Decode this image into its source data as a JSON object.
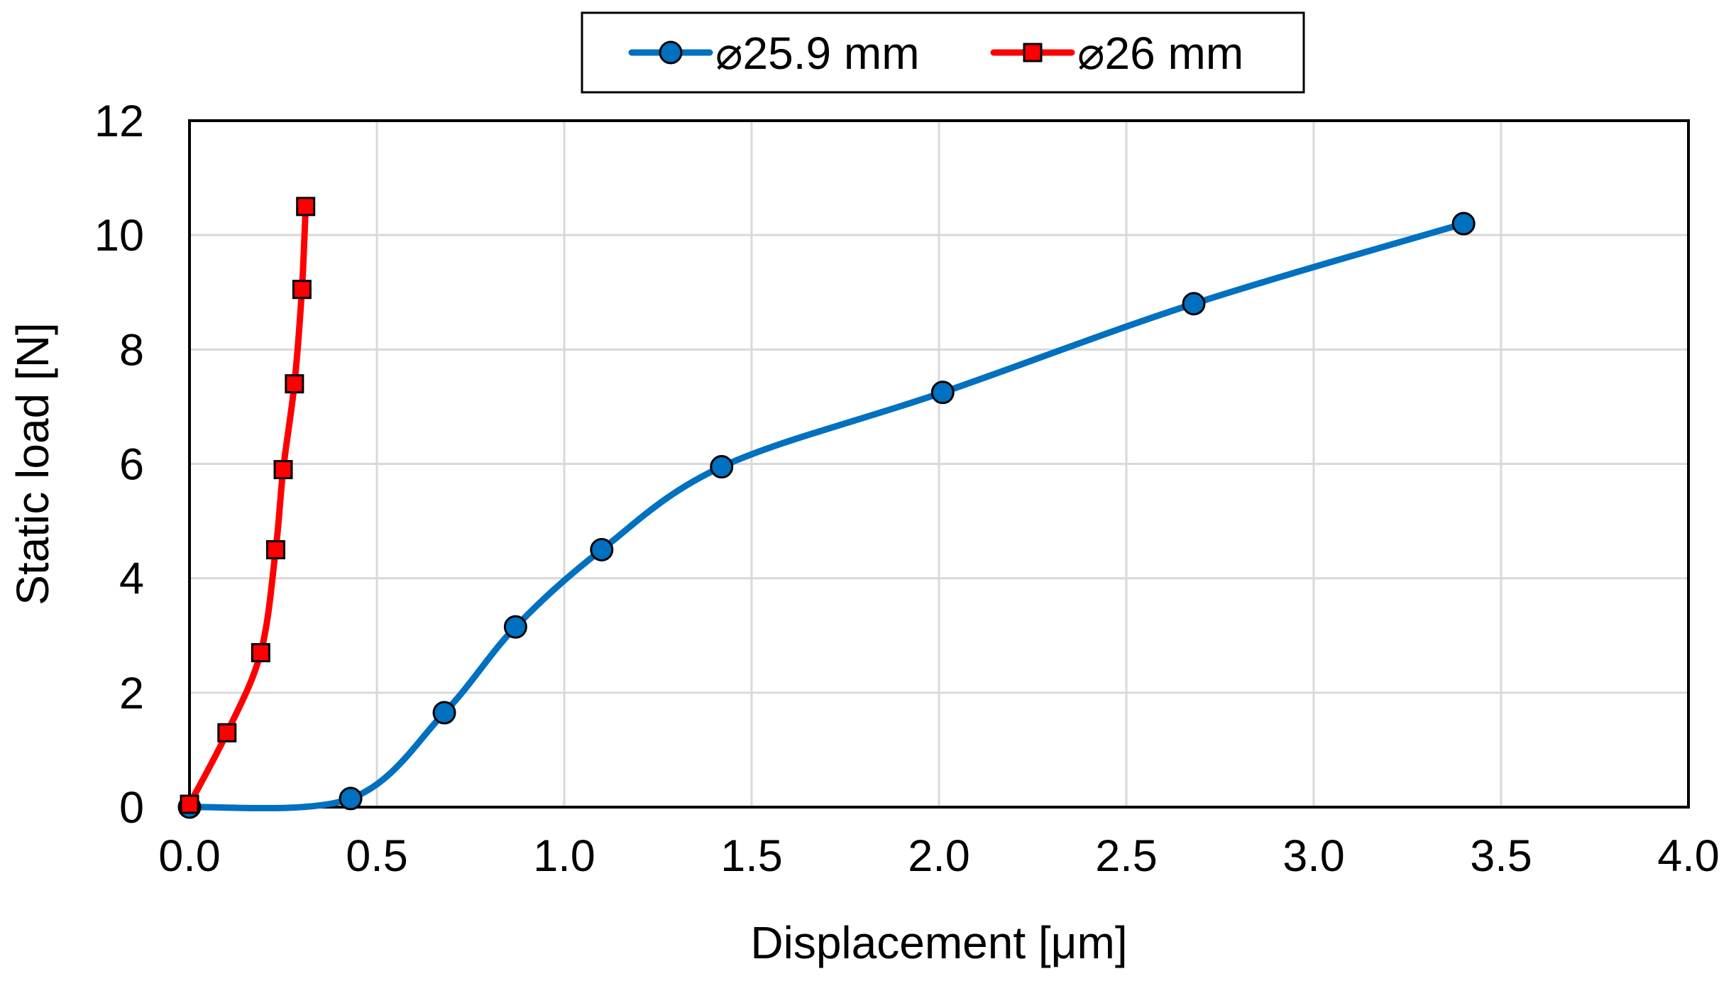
{
  "chart_data": {
    "type": "line",
    "xlabel": "Displacement [μm]",
    "ylabel": "Static load [N]",
    "xlim": [
      0.0,
      4.0
    ],
    "ylim": [
      0,
      12
    ],
    "xticks": [
      "0.0",
      "0.5",
      "1.0",
      "1.5",
      "2.0",
      "2.5",
      "3.0",
      "3.5",
      "4.0"
    ],
    "yticks": [
      "0",
      "2",
      "4",
      "6",
      "8",
      "10",
      "12"
    ],
    "grid": true,
    "legend_position": "top-center",
    "series": [
      {
        "name": "⌀25.9 mm",
        "color": "#0070C0",
        "marker": "circle",
        "x": [
          0.0,
          0.43,
          0.68,
          0.87,
          1.1,
          1.42,
          2.01,
          2.68,
          3.4
        ],
        "y": [
          0.0,
          0.15,
          1.65,
          3.15,
          4.5,
          5.95,
          7.25,
          8.8,
          10.2
        ]
      },
      {
        "name": "⌀26 mm",
        "color": "#FF0000",
        "marker": "square",
        "x": [
          0.0,
          0.1,
          0.19,
          0.23,
          0.25,
          0.28,
          0.3,
          0.31
        ],
        "y": [
          0.05,
          1.3,
          2.7,
          4.5,
          5.9,
          7.4,
          9.05,
          10.5
        ]
      }
    ]
  }
}
